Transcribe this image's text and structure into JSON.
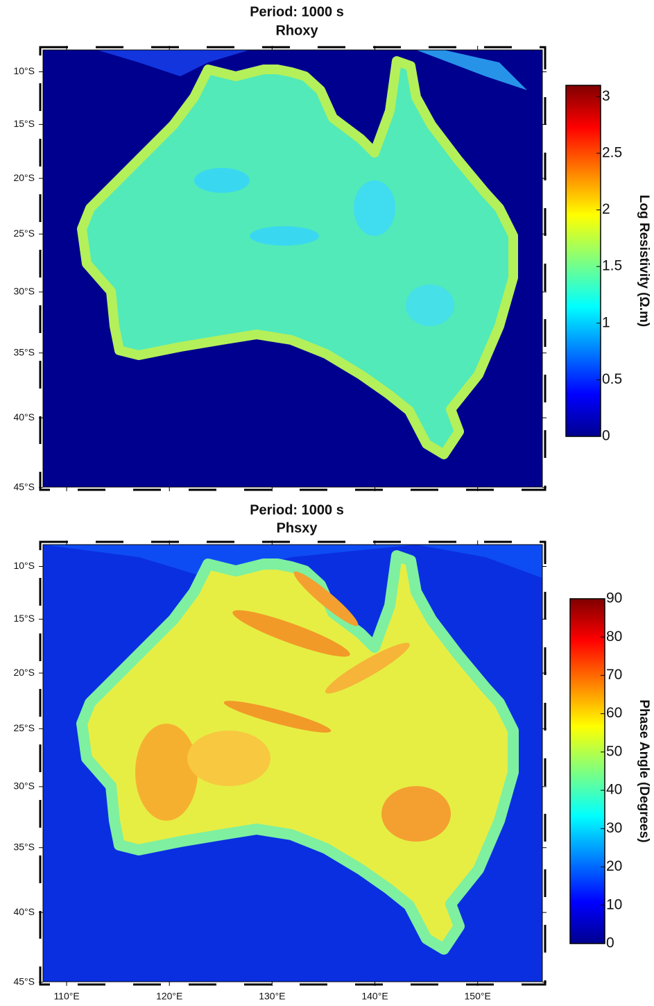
{
  "lonlim": [
    107.7,
    156.3
  ],
  "latlim": [
    -45,
    -7.9
  ],
  "maps": [
    {
      "title": "Period: 1000 s",
      "subtitle": "Rhoxy",
      "latticks": [
        {
          "value": -10,
          "label": "10°S"
        },
        {
          "value": -15,
          "label": "15°S"
        },
        {
          "value": -20,
          "label": "20°S"
        },
        {
          "value": -25,
          "label": "25°S"
        },
        {
          "value": -30,
          "label": "30°S"
        },
        {
          "value": -35,
          "label": "35°S"
        },
        {
          "value": -40,
          "label": "40°S"
        },
        {
          "value": -45,
          "label": "45°S"
        }
      ],
      "colorbar": {
        "label": "Log Resistivity (Ω.m)",
        "lim": [
          0,
          3.1
        ],
        "ticks": [
          0,
          0.5,
          1,
          1.5,
          2,
          2.5,
          3
        ]
      }
    },
    {
      "title": "Period: 1000 s",
      "subtitle": "Phsxy",
      "latticks": [
        {
          "value": -10,
          "label": "10°S"
        },
        {
          "value": -15,
          "label": "15°S"
        },
        {
          "value": -20,
          "label": "20°S"
        },
        {
          "value": -25,
          "label": "25°S"
        },
        {
          "value": -30,
          "label": "30°S"
        },
        {
          "value": -35,
          "label": "35°S"
        },
        {
          "value": -40,
          "label": "40°S"
        },
        {
          "value": -45,
          "label": "45°S"
        }
      ],
      "lonticks": [
        {
          "value": 110,
          "label": "110°E"
        },
        {
          "value": 120,
          "label": "120°E"
        },
        {
          "value": 130,
          "label": "130°E"
        },
        {
          "value": 140,
          "label": "140°E"
        },
        {
          "value": 150,
          "label": "150°E"
        }
      ],
      "colorbar": {
        "label": "Phase Angle (Degrees)",
        "lim": [
          0,
          90
        ],
        "ticks": [
          0,
          10,
          20,
          30,
          40,
          50,
          60,
          70,
          80,
          90
        ]
      }
    }
  ]
}
